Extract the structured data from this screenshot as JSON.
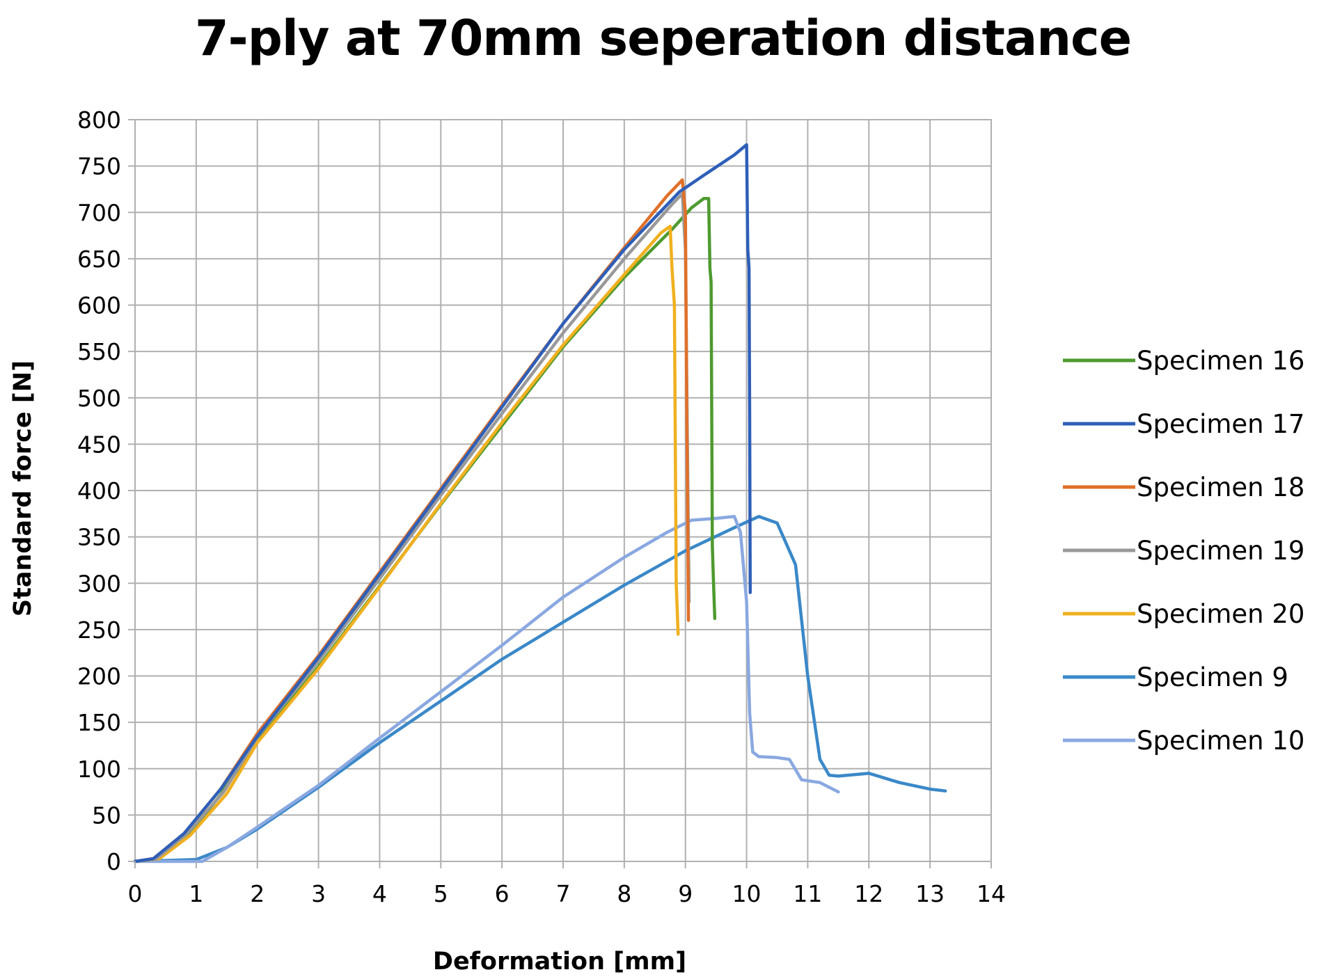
{
  "chart_data": {
    "type": "line",
    "title": "7-ply at 70mm seperation distance",
    "xlabel": "Deformation [mm]",
    "ylabel": "Standard force [N]",
    "xlim": [
      0,
      14
    ],
    "ylim": [
      0,
      800
    ],
    "xticks": [
      0,
      1,
      2,
      3,
      4,
      5,
      6,
      7,
      8,
      9,
      10,
      11,
      12,
      13,
      14
    ],
    "yticks": [
      0,
      50,
      100,
      150,
      200,
      250,
      300,
      350,
      400,
      450,
      500,
      550,
      600,
      650,
      700,
      750,
      800
    ],
    "grid": true,
    "legend_position": "right",
    "series": [
      {
        "name": "Specimen 16",
        "color": "#4e9a2f",
        "points": [
          [
            0,
            0
          ],
          [
            0.4,
            3
          ],
          [
            0.9,
            30
          ],
          [
            1.4,
            72
          ],
          [
            2,
            130
          ],
          [
            3,
            210
          ],
          [
            4,
            297
          ],
          [
            5,
            385
          ],
          [
            6,
            470
          ],
          [
            7,
            555
          ],
          [
            8,
            630
          ],
          [
            8.8,
            683
          ],
          [
            9.1,
            705
          ],
          [
            9.3,
            715
          ],
          [
            9.38,
            715
          ],
          [
            9.4,
            640
          ],
          [
            9.42,
            625
          ],
          [
            9.44,
            340
          ],
          [
            9.46,
            300
          ],
          [
            9.48,
            262
          ]
        ]
      },
      {
        "name": "Specimen 17",
        "color": "#2e5fb8",
        "points": [
          [
            0,
            0
          ],
          [
            0.3,
            3
          ],
          [
            0.8,
            30
          ],
          [
            1.4,
            78
          ],
          [
            2,
            135
          ],
          [
            3,
            220
          ],
          [
            4,
            310
          ],
          [
            5,
            400
          ],
          [
            6,
            490
          ],
          [
            7,
            580
          ],
          [
            8,
            660
          ],
          [
            8.9,
            722
          ],
          [
            9.3,
            740
          ],
          [
            9.8,
            762
          ],
          [
            10,
            773
          ],
          [
            10.02,
            660
          ],
          [
            10.04,
            640
          ],
          [
            10.05,
            480
          ],
          [
            10.06,
            290
          ]
        ]
      },
      {
        "name": "Specimen 18",
        "color": "#e0702a",
        "points": [
          [
            0,
            0
          ],
          [
            0.3,
            3
          ],
          [
            0.8,
            30
          ],
          [
            1.4,
            78
          ],
          [
            2,
            138
          ],
          [
            3,
            222
          ],
          [
            4,
            312
          ],
          [
            5,
            402
          ],
          [
            6,
            492
          ],
          [
            7,
            580
          ],
          [
            8,
            662
          ],
          [
            8.7,
            718
          ],
          [
            8.95,
            735
          ],
          [
            9.0,
            700
          ],
          [
            9.02,
            500
          ],
          [
            9.05,
            260
          ]
        ]
      },
      {
        "name": "Specimen 19",
        "color": "#999999",
        "points": [
          [
            0,
            0
          ],
          [
            0.35,
            3
          ],
          [
            0.85,
            30
          ],
          [
            1.45,
            75
          ],
          [
            2,
            134
          ],
          [
            3,
            216
          ],
          [
            4,
            305
          ],
          [
            5,
            395
          ],
          [
            6,
            483
          ],
          [
            7,
            570
          ],
          [
            8,
            650
          ],
          [
            8.8,
            710
          ],
          [
            8.95,
            720
          ],
          [
            9.0,
            660
          ],
          [
            9.03,
            470
          ],
          [
            9.06,
            280
          ]
        ]
      },
      {
        "name": "Specimen 20",
        "color": "#f0b020",
        "points": [
          [
            0,
            0
          ],
          [
            0.4,
            3
          ],
          [
            0.9,
            28
          ],
          [
            1.5,
            73
          ],
          [
            2,
            128
          ],
          [
            3,
            208
          ],
          [
            4,
            296
          ],
          [
            5,
            386
          ],
          [
            6,
            473
          ],
          [
            7,
            557
          ],
          [
            8,
            633
          ],
          [
            8.6,
            678
          ],
          [
            8.75,
            685
          ],
          [
            8.78,
            640
          ],
          [
            8.82,
            600
          ],
          [
            8.85,
            300
          ],
          [
            8.88,
            245
          ]
        ]
      },
      {
        "name": "Specimen 9",
        "color": "#3a88c8",
        "points": [
          [
            0,
            0
          ],
          [
            1,
            2
          ],
          [
            1.5,
            15
          ],
          [
            2,
            35
          ],
          [
            3,
            80
          ],
          [
            4,
            128
          ],
          [
            5,
            173
          ],
          [
            6,
            218
          ],
          [
            7,
            258
          ],
          [
            8,
            298
          ],
          [
            9,
            335
          ],
          [
            9.8,
            360
          ],
          [
            10.2,
            372
          ],
          [
            10.5,
            365
          ],
          [
            10.8,
            320
          ],
          [
            11.0,
            200
          ],
          [
            11.2,
            110
          ],
          [
            11.35,
            93
          ],
          [
            11.5,
            92
          ],
          [
            12,
            95
          ],
          [
            12.5,
            85
          ],
          [
            13,
            78
          ],
          [
            13.25,
            76
          ]
        ]
      },
      {
        "name": "Specimen 10",
        "color": "#8aa8e0",
        "points": [
          [
            0,
            0
          ],
          [
            1.1,
            0
          ],
          [
            1.5,
            15
          ],
          [
            2,
            37
          ],
          [
            3,
            82
          ],
          [
            4,
            133
          ],
          [
            5,
            183
          ],
          [
            6,
            233
          ],
          [
            7,
            285
          ],
          [
            8,
            328
          ],
          [
            8.7,
            355
          ],
          [
            9.1,
            368
          ],
          [
            9.5,
            370
          ],
          [
            9.8,
            372
          ],
          [
            9.9,
            355
          ],
          [
            10.0,
            280
          ],
          [
            10.05,
            160
          ],
          [
            10.1,
            118
          ],
          [
            10.2,
            113
          ],
          [
            10.5,
            112
          ],
          [
            10.7,
            110
          ],
          [
            10.9,
            88
          ],
          [
            11.2,
            85
          ],
          [
            11.5,
            75
          ]
        ]
      }
    ]
  }
}
